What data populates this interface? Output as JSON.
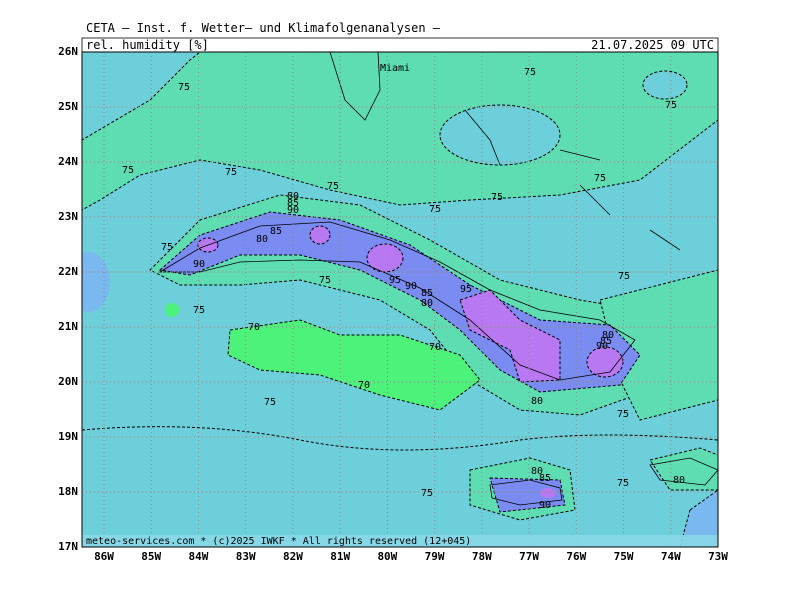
{
  "header": {
    "title": "CETA – Inst. f. Wetter– und Klimafolgenanalysen –",
    "variable": "rel. humidity [%]",
    "datetime": "21.07.2025 09 UTC"
  },
  "map": {
    "lat_labels": [
      "26N",
      "25N",
      "24N",
      "23N",
      "22N",
      "21N",
      "20N",
      "19N",
      "18N",
      "17N"
    ],
    "lon_labels": [
      "86W",
      "85W",
      "84W",
      "83W",
      "82W",
      "81W",
      "80W",
      "79W",
      "78W",
      "77W",
      "76W",
      "75W",
      "74W",
      "73W"
    ],
    "place_labels": [
      "Miami"
    ],
    "contour_labels": [
      "75",
      "75",
      "75",
      "75",
      "75",
      "75",
      "75",
      "75",
      "75",
      "75",
      "75",
      "75",
      "75",
      "75",
      "75",
      "75",
      "75",
      "70",
      "70",
      "70",
      "80",
      "85",
      "90",
      "85",
      "80",
      "90",
      "95",
      "90",
      "85",
      "80",
      "95",
      "80",
      "85",
      "90",
      "80",
      "80",
      "85",
      "90",
      "80"
    ]
  },
  "footer": "meteo-services.com * (c)2025 IWKF * All rights reserved (12+045)"
}
